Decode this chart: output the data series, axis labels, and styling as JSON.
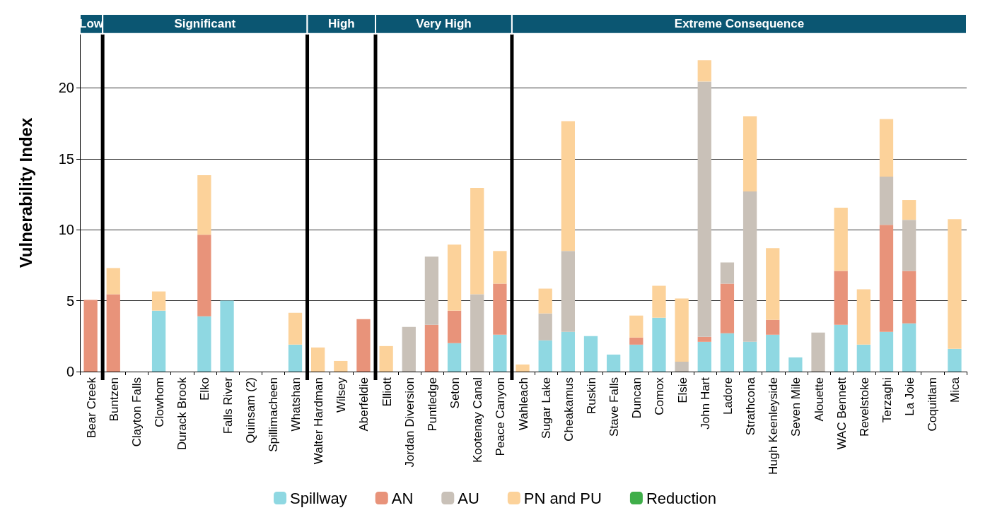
{
  "chart_data": {
    "type": "bar",
    "stacked": true,
    "ylabel": "Vulnerability Index",
    "categories": [
      "Bear Creek",
      "Buntzen",
      "Clayton Falls",
      "Clowhom",
      "Durack Brook",
      "Elko",
      "Falls River",
      "Quinsam (2)",
      "Spillimacheen",
      "Whatshan",
      "Walter Hardman",
      "Wilsey",
      "Aberfeldie",
      "Elliott",
      "Jordan Diversion",
      "Puntledge",
      "Seton",
      "Kootenay Canal",
      "Peace Canyon",
      "Wahleach",
      "Sugar Lake",
      "Cheakamus",
      "Ruskin",
      "Stave Falls",
      "Duncan",
      "Comox",
      "Elsie",
      "John Hart",
      "Ladore",
      "Strathcona",
      "Hugh Keenleyside",
      "Seven Mile",
      "Alouette",
      "WAC Bennett",
      "Revelstoke",
      "Terzaghi",
      "La Joie",
      "Coquitlam",
      "Mica"
    ],
    "series": [
      {
        "name": "Spillway",
        "color": "#8fd8e2",
        "values": [
          0,
          0,
          0,
          4.3,
          0,
          3.9,
          5.0,
          0,
          0,
          1.9,
          0,
          0,
          0,
          0,
          0,
          0,
          2.0,
          0,
          2.6,
          0,
          2.2,
          2.8,
          2.5,
          1.2,
          1.9,
          3.8,
          0,
          2.1,
          2.7,
          2.1,
          2.6,
          1.0,
          0,
          3.3,
          1.9,
          2.8,
          3.4,
          0,
          1.6
        ]
      },
      {
        "name": "AN",
        "color": "#e8937a",
        "values": [
          5.05,
          5.45,
          0,
          0,
          0,
          5.75,
          0,
          0,
          0,
          0,
          0,
          0,
          3.7,
          0,
          0,
          3.3,
          2.3,
          0,
          3.6,
          0,
          0,
          0,
          0,
          0,
          0.5,
          0,
          0,
          0.35,
          3.5,
          0,
          1.05,
          0,
          0,
          3.8,
          0,
          7.55,
          3.7,
          0,
          0
        ]
      },
      {
        "name": "AU",
        "color": "#c9c1b8",
        "values": [
          0,
          0,
          0,
          0,
          0,
          0,
          0,
          0,
          0,
          0,
          0,
          0,
          0,
          0,
          3.15,
          4.8,
          0,
          5.45,
          0,
          0,
          1.9,
          5.7,
          0,
          0,
          0,
          0,
          0.7,
          18.0,
          1.5,
          10.6,
          0,
          0,
          2.75,
          0,
          0,
          3.4,
          3.6,
          0,
          0
        ]
      },
      {
        "name": "PN and PU",
        "color": "#fcd29a",
        "values": [
          0,
          1.85,
          0,
          1.35,
          0,
          4.2,
          0,
          0,
          0,
          2.25,
          1.7,
          0.75,
          0,
          1.8,
          0,
          0,
          4.65,
          7.5,
          2.3,
          0.5,
          1.75,
          9.15,
          0,
          0,
          1.55,
          2.25,
          4.45,
          1.5,
          0,
          5.3,
          5.05,
          0,
          0,
          4.45,
          3.9,
          4.05,
          1.4,
          0,
          9.15
        ]
      },
      {
        "name": "Reduction",
        "color": "#3fae49",
        "values": [
          0,
          0,
          0,
          0,
          0,
          0,
          0,
          0,
          0,
          0,
          0,
          0,
          0,
          0,
          0,
          0,
          0,
          0,
          0,
          0,
          0,
          0,
          0,
          0,
          0,
          0,
          0,
          0,
          0,
          0,
          0,
          0,
          0,
          0,
          0,
          0,
          0,
          0,
          0
        ]
      }
    ],
    "ylim": [
      0,
      25.2
    ],
    "yticks": [
      0,
      5,
      10,
      15,
      20
    ],
    "grid": "y",
    "legend": "bottom",
    "bands": [
      {
        "axis": "x",
        "from": "Bear Creek",
        "to": "Bear Creek",
        "label": "Low",
        "color": "#0b5672"
      },
      {
        "axis": "x",
        "from": "Buntzen",
        "to": "Whatshan",
        "label": "Significant",
        "color": "#0b5672"
      },
      {
        "axis": "x",
        "from": "Walter Hardman",
        "to": "Aberfeldie",
        "label": "High",
        "color": "#0b5672"
      },
      {
        "axis": "x",
        "from": "Elliott",
        "to": "Peace Canyon",
        "label": "Very High",
        "color": "#0b5672"
      },
      {
        "axis": "x",
        "from": "Wahleach",
        "to": "Mica",
        "label": "Extreme Consequence",
        "color": "#0b5672"
      }
    ]
  }
}
